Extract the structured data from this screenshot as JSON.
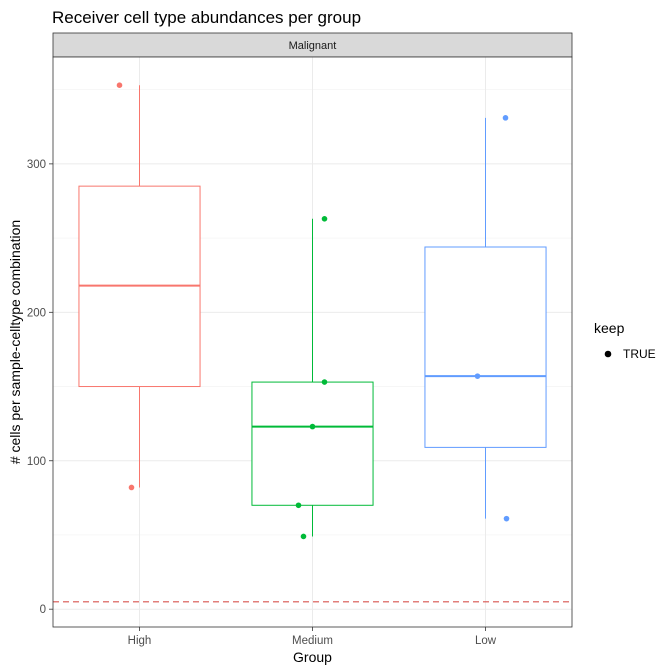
{
  "chart_data": {
    "type": "box",
    "title": "Receiver cell type abundances per group",
    "facet": "Malignant",
    "xlabel": "Group",
    "ylabel": "# cells per sample-celltype combination",
    "categories": [
      "High",
      "Medium",
      "Low"
    ],
    "ylim": [
      -12,
      372
    ],
    "yticks": [
      0,
      100,
      200,
      300
    ],
    "grid": true,
    "reference_line": {
      "y": 5,
      "color": "#d9534f",
      "style": "dashed"
    },
    "legend": {
      "title": "keep",
      "entries": [
        "TRUE"
      ],
      "position": "right"
    },
    "series": [
      {
        "name": "High",
        "color": "#F8766D",
        "box": {
          "q1": 150,
          "median": 218,
          "q3": 285,
          "whisker_low": 82,
          "whisker_high": 353
        },
        "points": [
          353,
          82
        ]
      },
      {
        "name": "Medium",
        "color": "#00BA38",
        "box": {
          "q1": 70,
          "median": 123,
          "q3": 153,
          "whisker_low": 49,
          "whisker_high": 263
        },
        "points": [
          263,
          153,
          123,
          70,
          49
        ]
      },
      {
        "name": "Low",
        "color": "#619CFF",
        "box": {
          "q1": 109,
          "median": 157,
          "q3": 244,
          "whisker_low": 61,
          "whisker_high": 331
        },
        "points": [
          331,
          157,
          61
        ]
      }
    ]
  }
}
